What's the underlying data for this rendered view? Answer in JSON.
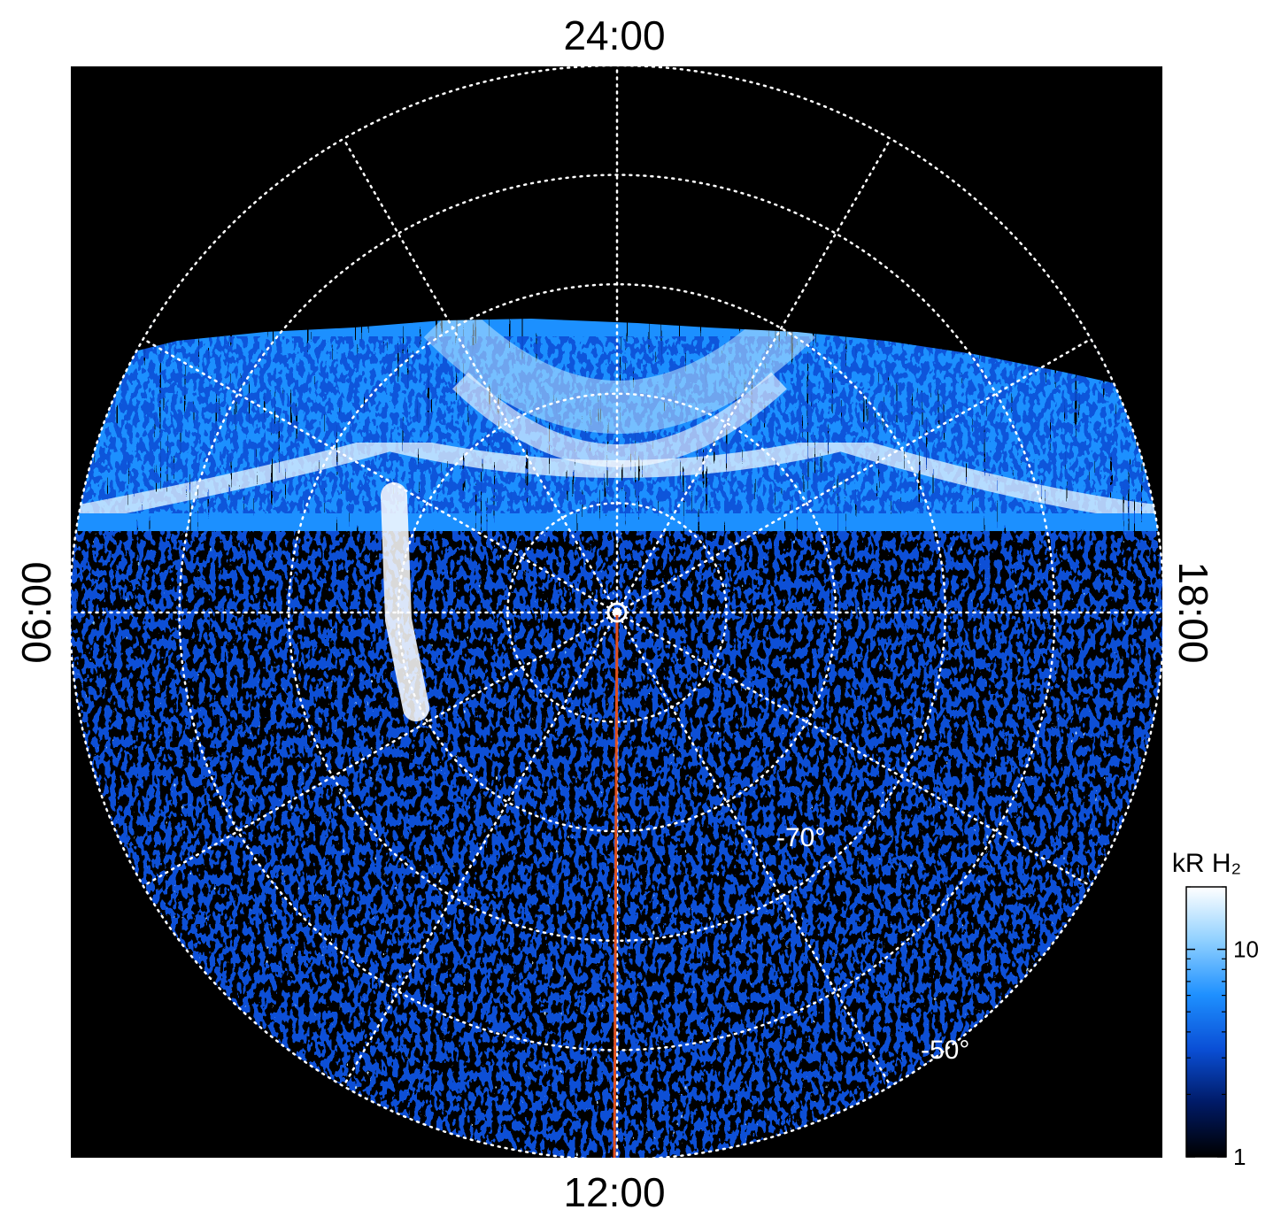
{
  "chart_data": {
    "type": "heatmap",
    "projection": "polar",
    "hemisphere_view": "south-pole-centered polar map",
    "local_time_labels": {
      "top": "24:00",
      "bottom": "12:00",
      "left": "06:00",
      "right": "18:00"
    },
    "latitude_labels": [
      {
        "text": "-70°",
        "latitude": -70
      },
      {
        "text": "-50°",
        "latitude": -50
      }
    ],
    "latitude_grid": [
      -80,
      -70,
      -60,
      -50,
      -40
    ],
    "local_time_grid_hours": [
      0,
      2,
      4,
      6,
      8,
      10,
      12,
      14,
      16,
      18,
      20,
      22
    ],
    "grid": true,
    "grid_style": "dotted",
    "meridian_line": {
      "local_time": "12:00",
      "color": "#e0501e"
    },
    "colorbar": {
      "title": "kR H₂",
      "scale": "log",
      "range": [
        1,
        20
      ],
      "tick_labels": [
        "1",
        "10"
      ],
      "tick_values": [
        1,
        10
      ],
      "colors": [
        "#000000",
        "#001a66",
        "#0a4fd6",
        "#1e90ff",
        "#8fd0ff",
        "#ffffff"
      ]
    },
    "features": [
      "bright auroral emission band near the 24:00 (midnight) side",
      "diffuse noisy emission over the dayside (12:00) hemisphere",
      "bright elongated arc near the 06:00 side"
    ],
    "nightside_no_data": true
  }
}
